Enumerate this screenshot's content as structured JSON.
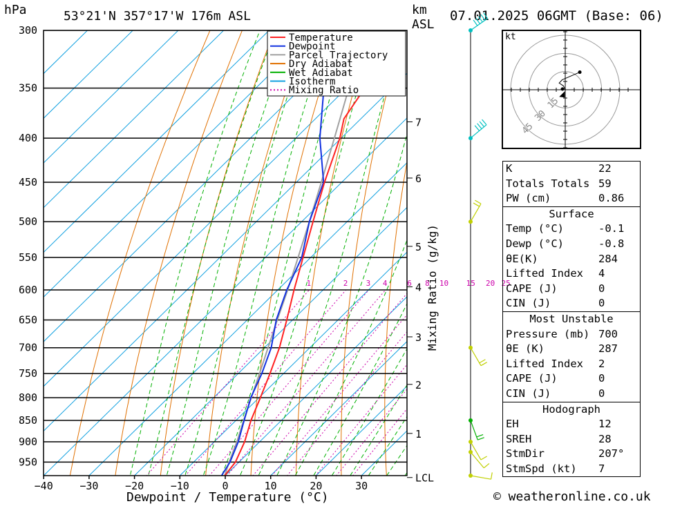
{
  "header": {
    "location": "53°21'N  357°17'W  176m  ASL",
    "datetime": "07.01.2025  06GMT  (Base: 06)",
    "pressure_unit": "hPa",
    "km_label": "km",
    "asl_label": "ASL"
  },
  "chart_data": {
    "type": "skew-t",
    "xlabel": "Dewpoint / Temperature (°C)",
    "right_axis_label": "Mixing Ratio (g/kg)",
    "x_ticks": [
      -40,
      -30,
      -20,
      -10,
      0,
      10,
      20,
      30
    ],
    "pressure_levels": [
      300,
      350,
      400,
      450,
      500,
      550,
      600,
      650,
      700,
      750,
      800,
      850,
      900,
      950
    ],
    "km_ticks": [
      {
        "km": "7",
        "p": 383
      },
      {
        "km": "6",
        "p": 445
      },
      {
        "km": "5",
        "p": 534
      },
      {
        "km": "4",
        "p": 595
      },
      {
        "km": "3",
        "p": 680
      },
      {
        "km": "2",
        "p": 772
      },
      {
        "km": "1",
        "p": 880
      },
      {
        "km": "LCL",
        "p": 990
      }
    ],
    "mixing_ratio_labels": [
      "1",
      "2",
      "3",
      "4",
      "6",
      "8",
      "10",
      "15",
      "20",
      "25"
    ],
    "mixing_ratio_values": [
      1,
      2,
      3,
      4,
      6,
      8,
      10,
      15,
      20,
      25
    ],
    "colors": {
      "temperature": "#ff2020",
      "dewpoint": "#1030e0",
      "parcel": "#a0a0a0",
      "dry_adiabat": "#e07000",
      "wet_adiabat": "#00b000",
      "isotherm": "#10a0e0",
      "mixing_ratio": "#cc00aa"
    },
    "legend": {
      "position": "top-right",
      "entries": [
        {
          "label": "Temperature",
          "key": "temperature",
          "dash": false
        },
        {
          "label": "Dewpoint",
          "key": "dewpoint",
          "dash": false
        },
        {
          "label": "Parcel Trajectory",
          "key": "parcel",
          "dash": false
        },
        {
          "label": "Dry Adiabat",
          "key": "dry_adiabat",
          "dash": false
        },
        {
          "label": "Wet Adiabat",
          "key": "wet_adiabat",
          "dash": false
        },
        {
          "label": "Isotherm",
          "key": "isotherm",
          "dash": false
        },
        {
          "label": "Mixing Ratio",
          "key": "mixing_ratio",
          "dash": true
        }
      ]
    },
    "series": [
      {
        "name": "Temperature",
        "points": [
          {
            "p": 985,
            "t": -0.1
          },
          {
            "p": 950,
            "t": -0.8
          },
          {
            "p": 900,
            "t": -3.3
          },
          {
            "p": 850,
            "t": -6.7
          },
          {
            "p": 800,
            "t": -9.7
          },
          {
            "p": 750,
            "t": -13.0
          },
          {
            "p": 700,
            "t": -16.7
          },
          {
            "p": 650,
            "t": -21.3
          },
          {
            "p": 600,
            "t": -26.4
          },
          {
            "p": 550,
            "t": -31.7
          },
          {
            "p": 500,
            "t": -37.5
          },
          {
            "p": 450,
            "t": -43.8
          },
          {
            "p": 400,
            "t": -50.3
          },
          {
            "p": 380,
            "t": -53.7
          },
          {
            "p": 350,
            "t": -56.0
          },
          {
            "p": 300,
            "t": -61.2
          }
        ]
      },
      {
        "name": "Dewpoint",
        "points": [
          {
            "p": 985,
            "t": -0.8
          },
          {
            "p": 950,
            "t": -2.0
          },
          {
            "p": 900,
            "t": -4.7
          },
          {
            "p": 850,
            "t": -8.2
          },
          {
            "p": 800,
            "t": -11.8
          },
          {
            "p": 750,
            "t": -14.8
          },
          {
            "p": 700,
            "t": -18.5
          },
          {
            "p": 650,
            "t": -23.6
          },
          {
            "p": 600,
            "t": -28.0
          },
          {
            "p": 550,
            "t": -32.0
          },
          {
            "p": 500,
            "t": -38.3
          },
          {
            "p": 450,
            "t": -44.0
          },
          {
            "p": 400,
            "t": -54.7
          },
          {
            "p": 350,
            "t": -65.0
          },
          {
            "p": 340,
            "t": -66.0
          },
          {
            "p": 300,
            "t": -70.0
          }
        ]
      },
      {
        "name": "Parcel Trajectory",
        "points": [
          {
            "p": 985,
            "t": -0.1
          },
          {
            "p": 950,
            "t": -2.2
          },
          {
            "p": 900,
            "t": -5.0
          },
          {
            "p": 850,
            "t": -8.3
          },
          {
            "p": 800,
            "t": -11.7
          },
          {
            "p": 750,
            "t": -15.3
          },
          {
            "p": 700,
            "t": -19.2
          },
          {
            "p": 650,
            "t": -23.4
          },
          {
            "p": 600,
            "t": -27.8
          },
          {
            "p": 550,
            "t": -32.8
          },
          {
            "p": 500,
            "t": -38.3
          },
          {
            "p": 450,
            "t": -44.5
          },
          {
            "p": 400,
            "t": -51.5
          },
          {
            "p": 350,
            "t": -59.5
          },
          {
            "p": 300,
            "t": -68.5
          }
        ]
      }
    ]
  },
  "hodograph": {
    "unit_label": "kt",
    "ring_labels": [
      "15",
      "30",
      "45"
    ],
    "ring_speeds": [
      15,
      30,
      45
    ],
    "points": [
      {
        "u": 0.0,
        "v": 0.0
      },
      {
        "u": -1.5,
        "v": 3.2
      },
      {
        "u": -5.0,
        "v": 5.5
      },
      {
        "u": -2.5,
        "v": 8.2
      },
      {
        "u": 12.0,
        "v": 14.5
      }
    ],
    "storm_motion": {
      "dir": 207,
      "speed": 7
    }
  },
  "indices": {
    "top": [
      {
        "label": "K",
        "value": "22"
      },
      {
        "label": "Totals Totals",
        "value": "59"
      },
      {
        "label": "PW (cm)",
        "value": "0.86"
      }
    ],
    "surface": {
      "title": "Surface",
      "rows": [
        {
          "label": "Temp (°C)",
          "value": "-0.1"
        },
        {
          "label": "Dewp (°C)",
          "value": "-0.8"
        },
        {
          "label": "θE(K)",
          "value": "284"
        },
        {
          "label": "Lifted Index",
          "value": "4"
        },
        {
          "label": "CAPE (J)",
          "value": "0"
        },
        {
          "label": "CIN (J)",
          "value": "0"
        }
      ]
    },
    "most_unstable": {
      "title": "Most Unstable",
      "rows": [
        {
          "label": "Pressure (mb)",
          "value": "700"
        },
        {
          "label": "θE (K)",
          "value": "287"
        },
        {
          "label": "Lifted Index",
          "value": "2"
        },
        {
          "label": "CAPE (J)",
          "value": "0"
        },
        {
          "label": "CIN (J)",
          "value": "0"
        }
      ]
    },
    "hodograph": {
      "title": "Hodograph",
      "rows": [
        {
          "label": "EH",
          "value": "12"
        },
        {
          "label": "SREH",
          "value": "28"
        },
        {
          "label": "StmDir",
          "value": "207°"
        },
        {
          "label": "StmSpd (kt)",
          "value": "7"
        }
      ]
    }
  },
  "wind_profile": [
    {
      "p": 300,
      "dir": 235,
      "spd": 45,
      "color": "#00c0c0"
    },
    {
      "p": 400,
      "dir": 230,
      "spd": 40,
      "color": "#00c0c0"
    },
    {
      "p": 500,
      "dir": 210,
      "spd": 15,
      "color": "#c0d000"
    },
    {
      "p": 700,
      "dir": 330,
      "spd": 15,
      "color": "#c0d000"
    },
    {
      "p": 850,
      "dir": 340,
      "spd": 15,
      "color": "#00b000"
    },
    {
      "p": 900,
      "dir": 330,
      "spd": 10,
      "color": "#c0d000"
    },
    {
      "p": 925,
      "dir": 320,
      "spd": 12,
      "color": "#c0d000"
    },
    {
      "p": 985,
      "dir": 280,
      "spd": 10,
      "color": "#c0d000"
    }
  ],
  "credit": "© weatheronline.co.uk"
}
